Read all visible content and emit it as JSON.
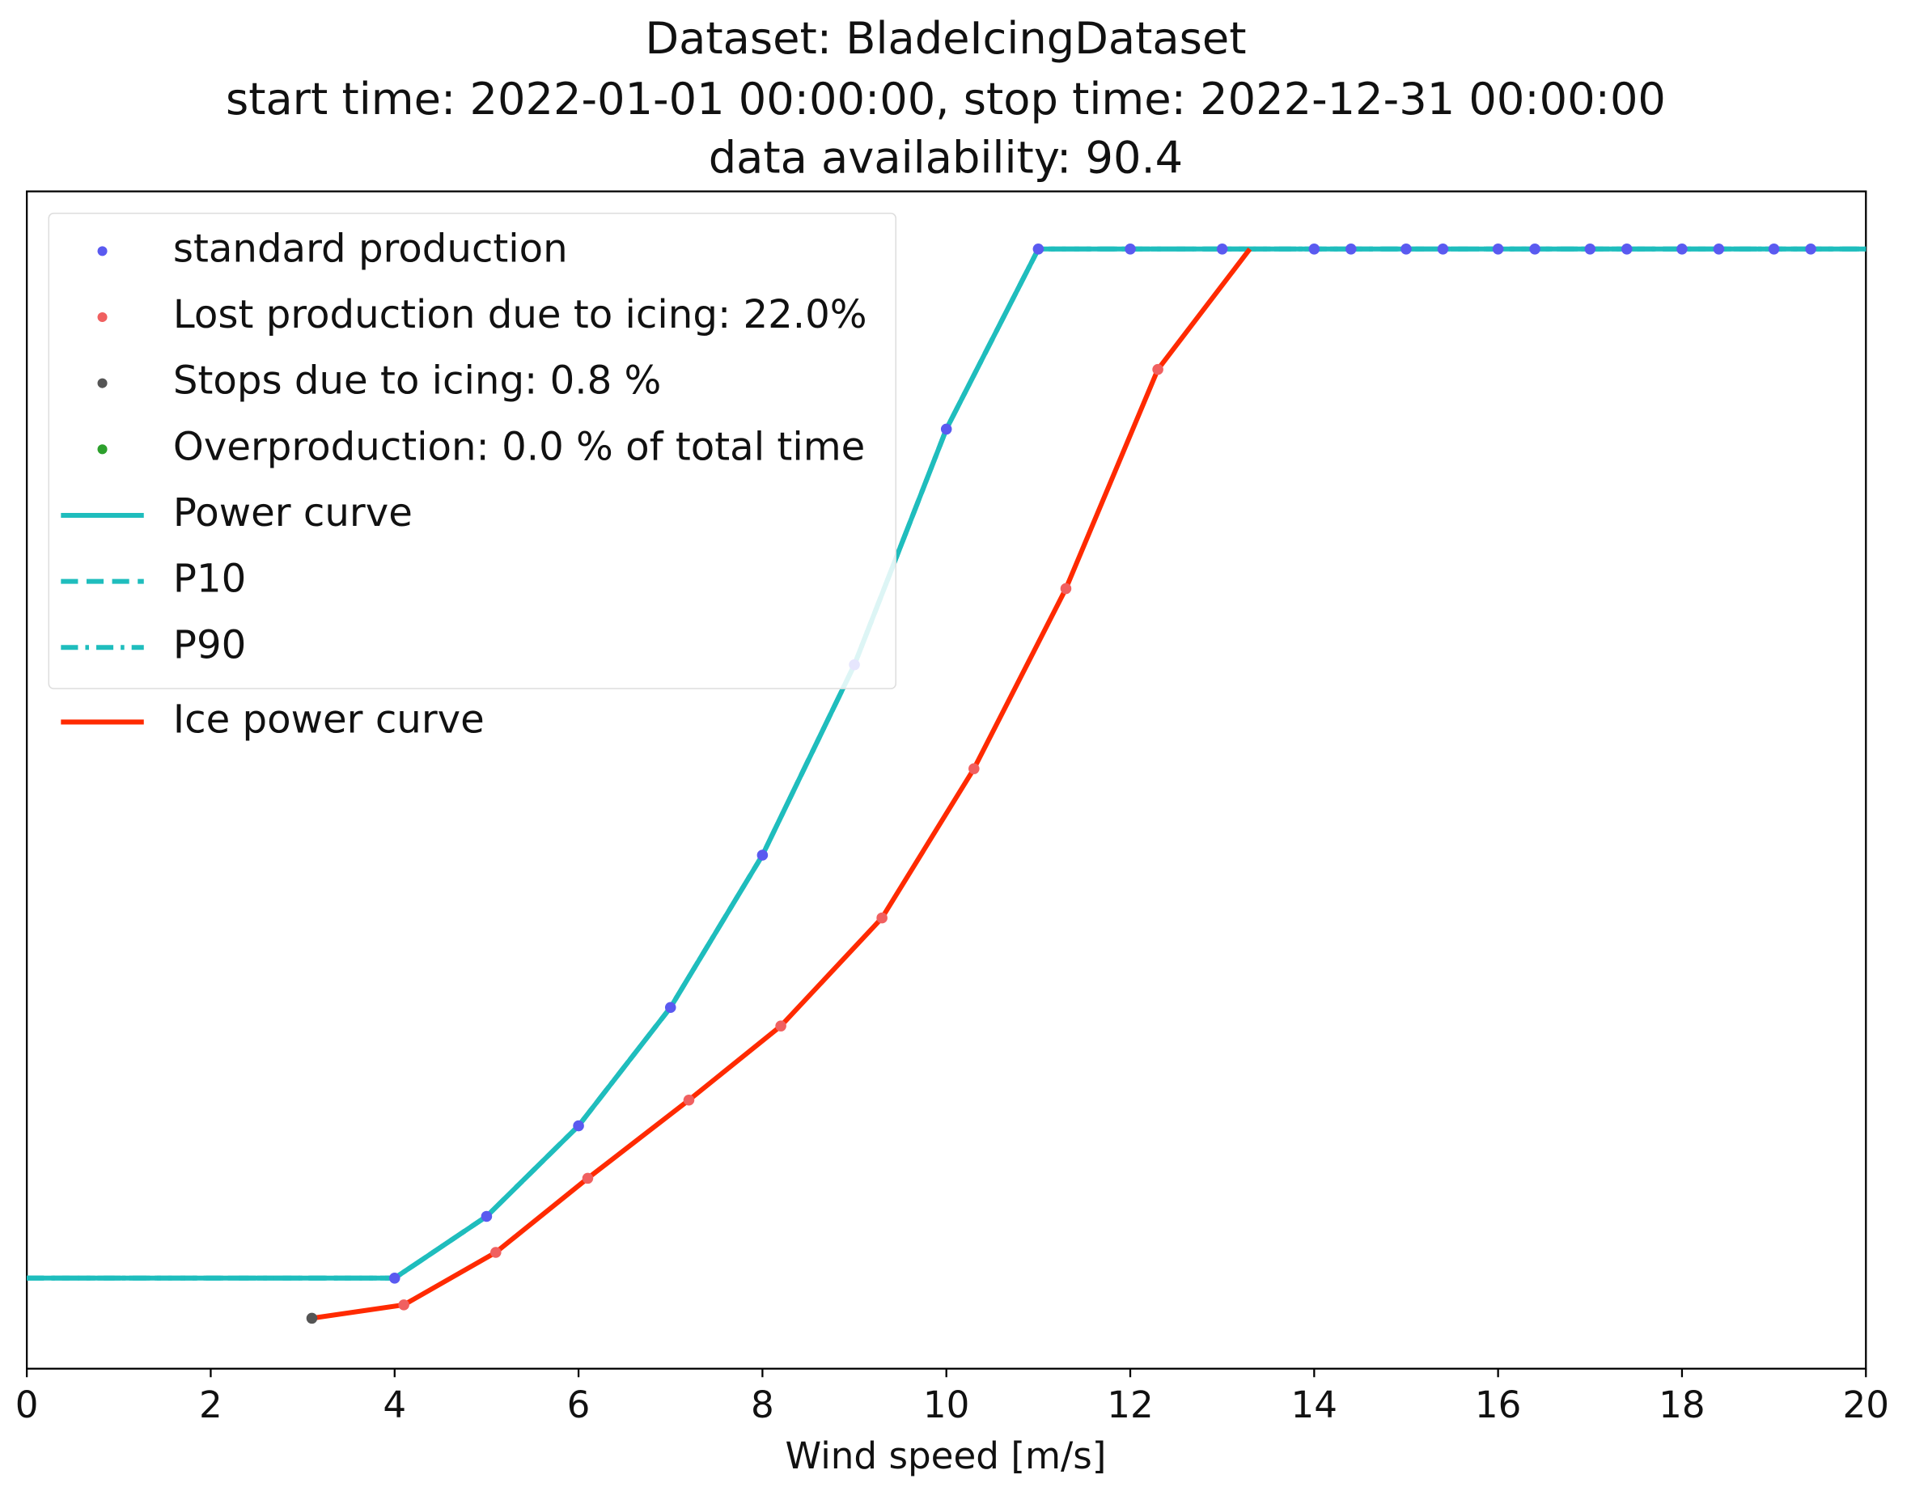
{
  "chart_data": {
    "type": "line",
    "title": [
      "Dataset: BladeIcingDataset",
      "start time: 2022-01-01 00:00:00, stop time: 2022-12-31 00:00:00",
      "data availability: 90.4"
    ],
    "xlabel": "Wind speed [m/s]",
    "xlim": [
      0,
      20
    ],
    "xticks": [
      0,
      2,
      4,
      6,
      8,
      10,
      12,
      14,
      16,
      18,
      20
    ],
    "ylim": [
      -0.088,
      1.056
    ],
    "legend": "upper left",
    "series": [
      {
        "name": "standard production",
        "kind": "scatter",
        "color": "#5a5af0",
        "x": [
          4,
          5,
          6,
          7,
          8,
          9,
          10,
          11,
          12,
          13,
          14,
          14.4,
          15,
          15.4,
          16,
          16.4,
          17,
          17.4,
          18,
          18.4,
          19,
          19.4
        ],
        "values": [
          0,
          0.06,
          0.148,
          0.263,
          0.411,
          0.596,
          0.825,
          1,
          1,
          1,
          1,
          1,
          1,
          1,
          1,
          1,
          1,
          1,
          1,
          1,
          1,
          1
        ]
      },
      {
        "name": "Lost production due to icing:  22.0%",
        "kind": "scatter",
        "color": "#f06060",
        "x": [
          4.1,
          5.1,
          6.1,
          7.2,
          8.2,
          9.3,
          10.3,
          11.3,
          12.3
        ],
        "values": [
          -0.026,
          0.025,
          0.097,
          0.173,
          0.245,
          0.35,
          0.495,
          0.67,
          0.883
        ]
      },
      {
        "name": "Stops due to icing: 0.8 %",
        "kind": "scatter",
        "color": "#555555",
        "x": [
          3.1
        ],
        "values": [
          -0.039
        ]
      },
      {
        "name": "Overproduction: 0.0 % of total time",
        "kind": "scatter",
        "color": "#2ca02c",
        "x": [],
        "values": []
      },
      {
        "name": "Power curve",
        "kind": "line",
        "dash": "solid",
        "color": "#1fbdbd",
        "x": [
          0,
          4,
          5,
          6,
          7,
          8,
          9,
          10,
          11,
          20
        ],
        "values": [
          0,
          0,
          0.06,
          0.148,
          0.263,
          0.411,
          0.596,
          0.825,
          1,
          1
        ]
      },
      {
        "name": "P10",
        "kind": "line",
        "dash": "dashed",
        "color": "#1fbdbd",
        "x": [
          0,
          4,
          5,
          6,
          7,
          8,
          9,
          10,
          11,
          20
        ],
        "values": [
          0,
          0,
          0.06,
          0.148,
          0.263,
          0.411,
          0.596,
          0.825,
          1,
          1
        ]
      },
      {
        "name": "P90",
        "kind": "line",
        "dash": "dashdot",
        "color": "#1fbdbd",
        "x": [
          0,
          4,
          5,
          6,
          7,
          8,
          9,
          10,
          11,
          20
        ],
        "values": [
          0,
          0,
          0.06,
          0.148,
          0.263,
          0.411,
          0.596,
          0.825,
          1,
          1
        ]
      },
      {
        "name": "Ice power curve",
        "kind": "line",
        "dash": "solid",
        "color": "#ff2a00",
        "x": [
          3.1,
          4.1,
          5.1,
          6.1,
          7.2,
          8.2,
          9.3,
          10.3,
          11.3,
          12.3,
          13.3
        ],
        "values": [
          -0.039,
          -0.026,
          0.025,
          0.097,
          0.173,
          0.245,
          0.35,
          0.495,
          0.67,
          0.883,
          1
        ]
      }
    ]
  }
}
